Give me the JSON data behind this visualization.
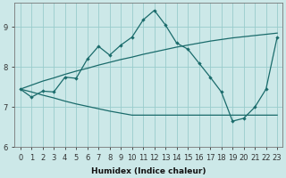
{
  "xlabel": "Humidex (Indice chaleur)",
  "bg_color": "#cce8e8",
  "line_color": "#1a6b6b",
  "grid_color": "#99cccc",
  "xlim": [
    -0.5,
    23.5
  ],
  "ylim": [
    6.0,
    9.6
  ],
  "yticks": [
    6,
    7,
    8,
    9
  ],
  "xticks": [
    0,
    1,
    2,
    3,
    4,
    5,
    6,
    7,
    8,
    9,
    10,
    11,
    12,
    13,
    14,
    15,
    16,
    17,
    18,
    19,
    20,
    21,
    22,
    23
  ],
  "line_main": [
    7.45,
    7.25,
    7.4,
    7.38,
    7.75,
    7.72,
    8.2,
    8.52,
    8.3,
    8.55,
    8.75,
    9.18,
    9.42,
    9.05,
    8.6,
    8.45,
    8.1,
    7.75,
    7.38,
    6.65,
    6.72,
    7.0,
    7.45,
    8.75
  ],
  "line_upper": [
    7.45,
    7.55,
    7.65,
    7.73,
    7.82,
    7.9,
    7.97,
    8.05,
    8.12,
    8.19,
    8.25,
    8.32,
    8.38,
    8.44,
    8.5,
    8.55,
    8.6,
    8.65,
    8.69,
    8.73,
    8.76,
    8.79,
    8.82,
    8.85
  ],
  "line_lower": [
    7.45,
    7.38,
    7.3,
    7.23,
    7.15,
    7.08,
    7.02,
    6.96,
    6.9,
    6.85,
    6.8,
    6.8,
    6.8,
    6.8,
    6.8,
    6.8,
    6.8,
    6.8,
    6.8,
    6.8,
    6.8,
    6.8,
    6.8,
    6.8
  ]
}
